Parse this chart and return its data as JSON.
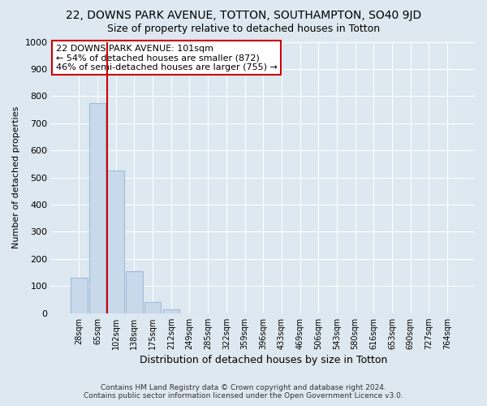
{
  "title": "22, DOWNS PARK AVENUE, TOTTON, SOUTHAMPTON, SO40 9JD",
  "subtitle": "Size of property relative to detached houses in Totton",
  "xlabel": "Distribution of detached houses by size in Totton",
  "ylabel": "Number of detached properties",
  "categories": [
    "28sqm",
    "65sqm",
    "102sqm",
    "138sqm",
    "175sqm",
    "212sqm",
    "249sqm",
    "285sqm",
    "322sqm",
    "359sqm",
    "396sqm",
    "433sqm",
    "469sqm",
    "506sqm",
    "543sqm",
    "580sqm",
    "616sqm",
    "653sqm",
    "690sqm",
    "727sqm",
    "764sqm"
  ],
  "values": [
    130,
    775,
    525,
    155,
    40,
    15,
    0,
    0,
    0,
    0,
    0,
    0,
    0,
    0,
    0,
    0,
    0,
    0,
    0,
    0,
    0
  ],
  "bar_color": "#c9d9ec",
  "bar_edge_color": "#a0bcd8",
  "vline_color": "#cc0000",
  "ylim": [
    0,
    1000
  ],
  "yticks": [
    0,
    100,
    200,
    300,
    400,
    500,
    600,
    700,
    800,
    900,
    1000
  ],
  "annotation_lines": [
    "22 DOWNS PARK AVENUE: 101sqm",
    "← 54% of detached houses are smaller (872)",
    "46% of semi-detached houses are larger (755) →"
  ],
  "annotation_box_color": "#ffffff",
  "annotation_box_edge_color": "#cc0000",
  "footer1": "Contains HM Land Registry data © Crown copyright and database right 2024.",
  "footer2": "Contains public sector information licensed under the Open Government Licence v3.0.",
  "bg_color": "#dde8f0",
  "plot_bg_color": "#dde8f0",
  "grid_color": "#ffffff",
  "title_fontsize": 10,
  "subtitle_fontsize": 9,
  "vline_bar_index": 2
}
